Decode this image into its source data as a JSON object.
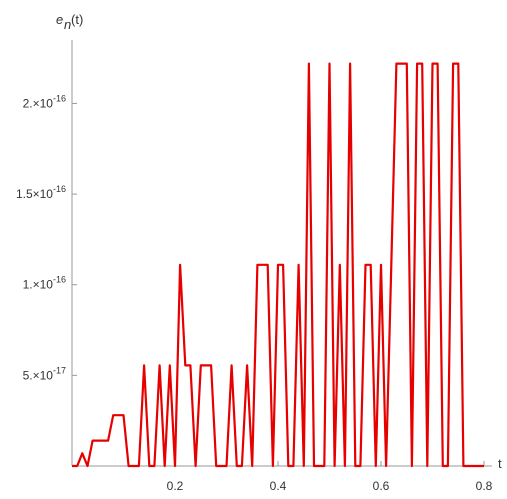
{
  "chart_data": {
    "type": "line",
    "title": "",
    "ylabel": {
      "base": "e",
      "subscript": "n",
      "suffix": "(t)"
    },
    "xlabel": "t",
    "xlim": [
      0,
      0.8
    ],
    "ylim": [
      0,
      2.35e-16
    ],
    "x_ticks": [
      {
        "value": 0.2,
        "label": "0.2"
      },
      {
        "value": 0.4,
        "label": "0.4"
      },
      {
        "value": 0.6,
        "label": "0.6"
      },
      {
        "value": 0.8,
        "label": "0.8"
      }
    ],
    "y_ticks": [
      {
        "value": 5e-17,
        "mantissa": "5.",
        "exponent": "-17"
      },
      {
        "value": 1e-16,
        "mantissa": "1.",
        "exponent": "-16"
      },
      {
        "value": 1.5e-16,
        "mantissa": "1.5",
        "exponent": "-16"
      },
      {
        "value": 2e-16,
        "mantissa": "2.",
        "exponent": "-16"
      }
    ],
    "series": [
      {
        "color": "#e60000",
        "points": [
          [
            0.0,
            0
          ],
          [
            0.01,
            0
          ],
          [
            0.02,
            7e-18
          ],
          [
            0.03,
            0
          ],
          [
            0.04,
            1.4e-17
          ],
          [
            0.05,
            1.4e-17
          ],
          [
            0.06,
            1.4e-17
          ],
          [
            0.07,
            1.4e-17
          ],
          [
            0.08,
            2.8e-17
          ],
          [
            0.09,
            2.8e-17
          ],
          [
            0.1,
            2.8e-17
          ],
          [
            0.11,
            0
          ],
          [
            0.12,
            0
          ],
          [
            0.13,
            0
          ],
          [
            0.14,
            5.55e-17
          ],
          [
            0.15,
            0
          ],
          [
            0.16,
            0
          ],
          [
            0.17,
            5.55e-17
          ],
          [
            0.18,
            0
          ],
          [
            0.19,
            5.55e-17
          ],
          [
            0.2,
            0
          ],
          [
            0.21,
            1.11e-16
          ],
          [
            0.22,
            5.55e-17
          ],
          [
            0.23,
            5.55e-17
          ],
          [
            0.24,
            0
          ],
          [
            0.25,
            5.55e-17
          ],
          [
            0.26,
            5.55e-17
          ],
          [
            0.27,
            5.55e-17
          ],
          [
            0.28,
            0
          ],
          [
            0.29,
            0
          ],
          [
            0.3,
            0
          ],
          [
            0.31,
            5.55e-17
          ],
          [
            0.32,
            0
          ],
          [
            0.33,
            0
          ],
          [
            0.34,
            5.55e-17
          ],
          [
            0.35,
            0
          ],
          [
            0.36,
            1.11e-16
          ],
          [
            0.37,
            1.11e-16
          ],
          [
            0.38,
            1.11e-16
          ],
          [
            0.39,
            0
          ],
          [
            0.4,
            1.11e-16
          ],
          [
            0.41,
            1.11e-16
          ],
          [
            0.42,
            0
          ],
          [
            0.43,
            0
          ],
          [
            0.44,
            1.11e-16
          ],
          [
            0.45,
            0
          ],
          [
            0.46,
            2.22e-16
          ],
          [
            0.47,
            0
          ],
          [
            0.48,
            0
          ],
          [
            0.49,
            0
          ],
          [
            0.5,
            2.22e-16
          ],
          [
            0.51,
            0
          ],
          [
            0.52,
            1.11e-16
          ],
          [
            0.53,
            0
          ],
          [
            0.54,
            2.22e-16
          ],
          [
            0.55,
            0
          ],
          [
            0.56,
            0
          ],
          [
            0.57,
            1.11e-16
          ],
          [
            0.58,
            1.11e-16
          ],
          [
            0.59,
            0
          ],
          [
            0.6,
            1.11e-16
          ],
          [
            0.61,
            0
          ],
          [
            0.62,
            1.11e-16
          ],
          [
            0.63,
            2.22e-16
          ],
          [
            0.64,
            2.22e-16
          ],
          [
            0.65,
            2.22e-16
          ],
          [
            0.66,
            0
          ],
          [
            0.67,
            2.22e-16
          ],
          [
            0.68,
            2.22e-16
          ],
          [
            0.69,
            0
          ],
          [
            0.7,
            2.22e-16
          ],
          [
            0.71,
            2.22e-16
          ],
          [
            0.72,
            0
          ],
          [
            0.73,
            0
          ],
          [
            0.74,
            2.22e-16
          ],
          [
            0.75,
            2.22e-16
          ],
          [
            0.76,
            0
          ],
          [
            0.77,
            0
          ],
          [
            0.78,
            0
          ],
          [
            0.79,
            0
          ],
          [
            0.8,
            0
          ]
        ]
      }
    ],
    "grid": false,
    "legend": "none"
  }
}
